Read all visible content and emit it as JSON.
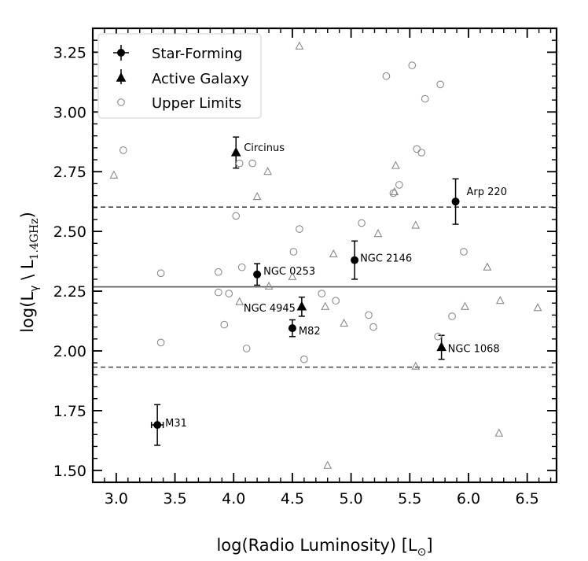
{
  "chart_data": {
    "type": "scatter",
    "xlabel": "log(Radio Luminosity) [L",
    "xlabel_sub": "⊙",
    "xlabel_end": "]",
    "ylabel": "log(L",
    "ylabel_sub1": "γ",
    "ylabel_mid": " \\ L",
    "ylabel_sub2": "1.4GHz",
    "ylabel_end": ")",
    "xlim": [
      2.8,
      6.75
    ],
    "ylim": [
      1.45,
      3.35
    ],
    "xticks": [
      "3.0",
      "3.5",
      "4.0",
      "4.5",
      "5.0",
      "5.5",
      "6.0",
      "6.5"
    ],
    "yticks": [
      "1.50",
      "1.75",
      "2.00",
      "2.25",
      "2.50",
      "2.75",
      "3.00",
      "3.25"
    ],
    "grid": false,
    "legend_position": "top-left",
    "legend": [
      "Star-Forming",
      "Active Galaxy",
      "Upper Limits"
    ],
    "hlines": [
      {
        "y": 2.268,
        "style": "solid"
      },
      {
        "y": 2.602,
        "style": "dashed"
      },
      {
        "y": 1.932,
        "style": "dashed"
      }
    ],
    "series": [
      {
        "name": "Star-Forming",
        "marker": "circle-filled",
        "points": [
          {
            "x": 3.35,
            "y": 1.69,
            "yerr": 0.085,
            "xerr": 0.05,
            "label": "M31"
          },
          {
            "x": 4.2,
            "y": 2.32,
            "yerr": 0.045,
            "label": "NGC 0253"
          },
          {
            "x": 4.5,
            "y": 2.095,
            "yerr": 0.035,
            "label": "M82"
          },
          {
            "x": 5.03,
            "y": 2.38,
            "yerr": 0.08,
            "label": "NGC 2146"
          },
          {
            "x": 5.89,
            "y": 2.625,
            "yerr": 0.095,
            "label": "Arp 220"
          }
        ]
      },
      {
        "name": "Active Galaxy",
        "marker": "triangle-filled",
        "points": [
          {
            "x": 4.02,
            "y": 2.83,
            "yerr": 0.065,
            "label": "Circinus"
          },
          {
            "x": 4.58,
            "y": 2.185,
            "yerr": 0.04,
            "label": "NGC 4945"
          },
          {
            "x": 5.77,
            "y": 2.015,
            "yerr": 0.05,
            "label": "NGC 1068"
          }
        ]
      },
      {
        "name": "Upper Limits",
        "marker": "circle-open",
        "points": [
          {
            "x": 3.06,
            "y": 2.84
          },
          {
            "x": 3.38,
            "y": 2.325
          },
          {
            "x": 3.38,
            "y": 2.035
          },
          {
            "x": 3.87,
            "y": 2.33
          },
          {
            "x": 3.87,
            "y": 2.245
          },
          {
            "x": 3.92,
            "y": 2.11
          },
          {
            "x": 3.96,
            "y": 2.24
          },
          {
            "x": 4.02,
            "y": 2.565
          },
          {
            "x": 4.05,
            "y": 2.785
          },
          {
            "x": 4.07,
            "y": 2.35
          },
          {
            "x": 4.11,
            "y": 2.01
          },
          {
            "x": 4.16,
            "y": 2.785
          },
          {
            "x": 4.51,
            "y": 2.415
          },
          {
            "x": 4.56,
            "y": 2.51
          },
          {
            "x": 4.6,
            "y": 1.965
          },
          {
            "x": 4.75,
            "y": 2.24
          },
          {
            "x": 4.87,
            "y": 2.21
          },
          {
            "x": 5.09,
            "y": 2.535
          },
          {
            "x": 5.15,
            "y": 2.15
          },
          {
            "x": 5.19,
            "y": 2.1
          },
          {
            "x": 5.3,
            "y": 3.15
          },
          {
            "x": 5.36,
            "y": 2.66
          },
          {
            "x": 5.41,
            "y": 2.695
          },
          {
            "x": 5.52,
            "y": 3.195
          },
          {
            "x": 5.56,
            "y": 2.845
          },
          {
            "x": 5.6,
            "y": 2.83
          },
          {
            "x": 5.63,
            "y": 3.055
          },
          {
            "x": 5.74,
            "y": 2.06
          },
          {
            "x": 5.76,
            "y": 3.115
          },
          {
            "x": 5.86,
            "y": 2.145
          },
          {
            "x": 5.96,
            "y": 2.415
          },
          {
            "x": 4.0,
            "y": 3.235
          }
        ]
      },
      {
        "name": "",
        "marker": "triangle-open",
        "points": [
          {
            "x": 2.98,
            "y": 2.735
          },
          {
            "x": 4.2,
            "y": 2.645
          },
          {
            "x": 4.29,
            "y": 2.75
          },
          {
            "x": 4.3,
            "y": 2.27
          },
          {
            "x": 4.05,
            "y": 2.205
          },
          {
            "x": 4.5,
            "y": 2.31
          },
          {
            "x": 4.56,
            "y": 3.275
          },
          {
            "x": 4.78,
            "y": 2.185
          },
          {
            "x": 4.85,
            "y": 2.405
          },
          {
            "x": 4.94,
            "y": 2.115
          },
          {
            "x": 4.8,
            "y": 1.52
          },
          {
            "x": 5.23,
            "y": 2.49
          },
          {
            "x": 5.37,
            "y": 2.665
          },
          {
            "x": 5.38,
            "y": 2.775
          },
          {
            "x": 5.55,
            "y": 2.525
          },
          {
            "x": 5.55,
            "y": 1.935
          },
          {
            "x": 5.97,
            "y": 2.185
          },
          {
            "x": 6.16,
            "y": 2.35
          },
          {
            "x": 6.27,
            "y": 2.21
          },
          {
            "x": 6.26,
            "y": 1.655
          },
          {
            "x": 6.59,
            "y": 2.18
          }
        ]
      }
    ]
  }
}
